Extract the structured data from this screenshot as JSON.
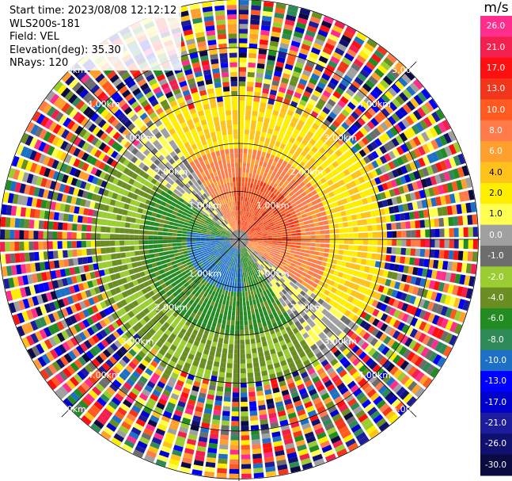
{
  "info": {
    "start_time": "Start time: 2023/08/08 12:12:12",
    "instrument": "WLS200s-181",
    "field": "Field: VEL",
    "elevation": "Elevation(deg): 35.30",
    "nrays": "NRays: 120"
  },
  "colorbar": {
    "unit": "m/s",
    "ticks": [
      "26.0",
      "21.0",
      "17.0",
      "13.0",
      "10.0",
      "8.0",
      "6.0",
      "4.0",
      "2.0",
      "1.0",
      "0.0",
      "-1.0",
      "-2.0",
      "-4.0",
      "-6.0",
      "-8.0",
      "-10.0",
      "-13.0",
      "-17.0",
      "-21.0",
      "-26.0",
      "-30.0"
    ],
    "colors": [
      "#ff2d8c",
      "#f21f4f",
      "#ff1010",
      "#f2361c",
      "#ff5a1f",
      "#ff7c4a",
      "#ff9f2e",
      "#ffc21a",
      "#ffee00",
      "#ffff52",
      "#a0a0a0",
      "#6d6d6d",
      "#9acd32",
      "#6b8e23",
      "#228b22",
      "#2e8b57",
      "#1e6fc6",
      "#0000ff",
      "#0000cd",
      "#1c1c9c",
      "#101070",
      "#0a0a40"
    ]
  },
  "chart_data": {
    "type": "ppi",
    "title": "",
    "range_rings_km": [
      1.0,
      2.0,
      3.0,
      4.0,
      5.0
    ],
    "range_labels": [
      "1.00km",
      "2.00km",
      "3.00km",
      "4.00km",
      "5.00km"
    ],
    "nrays": 120,
    "field": "VEL",
    "unit": "m/s",
    "vmin": -30.0,
    "vmax": 26.0,
    "pattern": {
      "inner_towards_sector_deg": [
        200,
        340
      ],
      "inner_away_sector_deg": [
        20,
        160
      ],
      "valid_range_km": 2.9
    }
  }
}
